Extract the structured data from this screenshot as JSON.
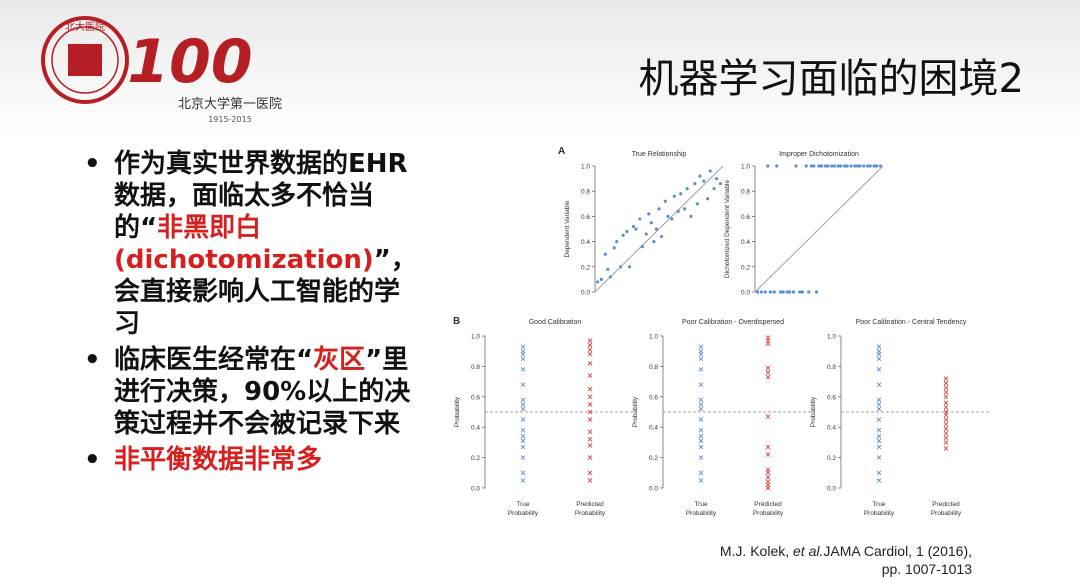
{
  "header": {
    "title": "机器学习面临的困境2",
    "logo": {
      "seal_text": "北大医院",
      "centenary_text": "100",
      "calligraphy": "北京大学第一医院",
      "years": "1915-2015"
    }
  },
  "bullets": [
    {
      "segments": [
        {
          "text": "作为真实世界数据的EHR数据，面临太多不恰当的",
          "red": false
        },
        {
          "text": "“",
          "red": false
        },
        {
          "text": "非黑即白(dichotomization)",
          "red": true
        },
        {
          "text": "”，会直接影响人工智能的学习",
          "red": false
        }
      ]
    },
    {
      "segments": [
        {
          "text": "临床医生经常在“",
          "red": false
        },
        {
          "text": "灰区",
          "red": true
        },
        {
          "text": "”里进行决策，90%以上的决策过程并不会被记录下来",
          "red": false
        }
      ]
    },
    {
      "segments": [
        {
          "text": "非平衡数据非常多",
          "red": true
        }
      ]
    }
  ],
  "citation": {
    "authors": "M.J. Kolek, ",
    "etal": "et al.",
    "journal": "JAMA Cardiol, 1 (2016),",
    "pages": "pp. 1007-1013"
  },
  "colors": {
    "blue": "#5a8fd6",
    "red": "#d9403a",
    "line": "#a0a0a0",
    "text_red": "#d61f1f"
  },
  "chart_data": [
    {
      "panel": "A",
      "type": "scatter",
      "title": "True Relationship",
      "ylabel": "Dependent Variable",
      "xlim": [
        0,
        1
      ],
      "ylim": [
        0,
        1
      ],
      "yticks": [
        "0.0",
        "0.2",
        "0.4",
        "0.6",
        "0.8",
        "1.0"
      ],
      "series": [
        {
          "x": [
            0.02,
            0.05,
            0.08,
            0.1,
            0.12,
            0.15,
            0.17,
            0.2,
            0.22,
            0.25,
            0.27,
            0.3,
            0.32,
            0.35,
            0.37,
            0.4,
            0.42,
            0.44,
            0.46,
            0.48,
            0.5,
            0.52,
            0.55,
            0.57,
            0.6,
            0.62,
            0.65,
            0.67,
            0.7,
            0.72,
            0.75,
            0.78,
            0.8,
            0.82,
            0.85,
            0.88,
            0.9,
            0.93,
            0.95,
            0.98
          ],
          "y": [
            0.08,
            0.1,
            0.3,
            0.18,
            0.12,
            0.35,
            0.4,
            0.2,
            0.45,
            0.48,
            0.2,
            0.52,
            0.5,
            0.58,
            0.36,
            0.46,
            0.62,
            0.55,
            0.4,
            0.5,
            0.66,
            0.44,
            0.72,
            0.6,
            0.58,
            0.76,
            0.64,
            0.78,
            0.66,
            0.82,
            0.6,
            0.86,
            0.7,
            0.92,
            0.88,
            0.74,
            0.96,
            0.82,
            0.9,
            0.86
          ]
        }
      ],
      "fit_line": {
        "x": [
          0,
          1
        ],
        "y": [
          0,
          1
        ]
      }
    },
    {
      "panel": "A",
      "type": "scatter",
      "title": "Improper Dichotomization",
      "ylabel": "Dichotomized Dependent Variable",
      "xlim": [
        0,
        1
      ],
      "ylim": [
        0,
        1
      ],
      "yticks": [
        "0.0",
        "0.2",
        "0.4",
        "0.6",
        "0.8",
        "1.0"
      ],
      "series": [
        {
          "x": [
            0.02,
            0.05,
            0.08,
            0.12,
            0.15,
            0.2,
            0.22,
            0.25,
            0.27,
            0.3,
            0.35,
            0.37,
            0.42,
            0.48,
            0.1,
            0.17,
            0.32,
            0.4,
            0.44,
            0.46,
            0.5,
            0.52,
            0.55,
            0.57,
            0.6,
            0.62,
            0.65,
            0.67,
            0.7,
            0.72,
            0.75,
            0.78,
            0.8,
            0.82,
            0.85,
            0.88,
            0.9,
            0.93,
            0.95,
            0.98
          ],
          "y": [
            0,
            0,
            0,
            0,
            0,
            0,
            0,
            0,
            0,
            0,
            0,
            0,
            0,
            0,
            1,
            1,
            1,
            1,
            1,
            1,
            1,
            1,
            1,
            1,
            1,
            1,
            1,
            1,
            1,
            1,
            1,
            1,
            1,
            1,
            1,
            1,
            1,
            1,
            1,
            1
          ]
        }
      ],
      "fit_line": {
        "x": [
          0,
          1
        ],
        "y": [
          0,
          1
        ]
      }
    },
    {
      "panel": "B",
      "type": "scatter",
      "title": "Good Calibration",
      "ylabel": "Probability",
      "categories": [
        "True Probability",
        "Predicted Probability"
      ],
      "ylim": [
        0,
        1
      ],
      "yticks": [
        "0.0",
        "0.2",
        "0.4",
        "0.6",
        "0.8",
        "1.0"
      ],
      "reference": 0.5,
      "series": [
        {
          "values": [
            0.05,
            0.1,
            0.2,
            0.27,
            0.31,
            0.34,
            0.38,
            0.45,
            0.52,
            0.55,
            0.58,
            0.68,
            0.78,
            0.85,
            0.88,
            0.9,
            0.93
          ]
        },
        {
          "values": [
            0.05,
            0.1,
            0.2,
            0.28,
            0.32,
            0.37,
            0.45,
            0.5,
            0.55,
            0.6,
            0.65,
            0.74,
            0.82,
            0.88,
            0.91,
            0.94,
            0.97
          ]
        }
      ]
    },
    {
      "panel": "B",
      "type": "scatter",
      "title": "Poor Calibration - Overdispersed",
      "ylabel": "Probability",
      "categories": [
        "True Probability",
        "Predicted Probability"
      ],
      "ylim": [
        0,
        1
      ],
      "yticks": [
        "0.0",
        "0.2",
        "0.4",
        "0.6",
        "0.8",
        "1.0"
      ],
      "reference": 0.5,
      "series": [
        {
          "values": [
            0.05,
            0.1,
            0.2,
            0.27,
            0.31,
            0.34,
            0.38,
            0.45,
            0.52,
            0.55,
            0.58,
            0.68,
            0.78,
            0.85,
            0.88,
            0.9,
            0.93
          ]
        },
        {
          "values": [
            0.0,
            0.02,
            0.04,
            0.07,
            0.1,
            0.12,
            0.22,
            0.27,
            0.47,
            0.73,
            0.76,
            0.79,
            0.95,
            0.97,
            0.99
          ]
        }
      ]
    },
    {
      "panel": "B",
      "type": "scatter",
      "title": "Poor Calibration - Central Tendency",
      "ylabel": "Probability",
      "categories": [
        "True Probability",
        "Predicted Probability"
      ],
      "ylim": [
        0,
        1
      ],
      "yticks": [
        "0.0",
        "0.2",
        "0.4",
        "0.6",
        "0.8",
        "1.0"
      ],
      "reference": 0.5,
      "series": [
        {
          "values": [
            0.05,
            0.1,
            0.2,
            0.27,
            0.31,
            0.34,
            0.38,
            0.45,
            0.52,
            0.55,
            0.58,
            0.68,
            0.78,
            0.85,
            0.88,
            0.9,
            0.93
          ]
        },
        {
          "values": [
            0.26,
            0.3,
            0.33,
            0.36,
            0.39,
            0.42,
            0.45,
            0.48,
            0.5,
            0.53,
            0.56,
            0.6,
            0.63,
            0.66,
            0.69,
            0.72
          ]
        }
      ]
    }
  ]
}
